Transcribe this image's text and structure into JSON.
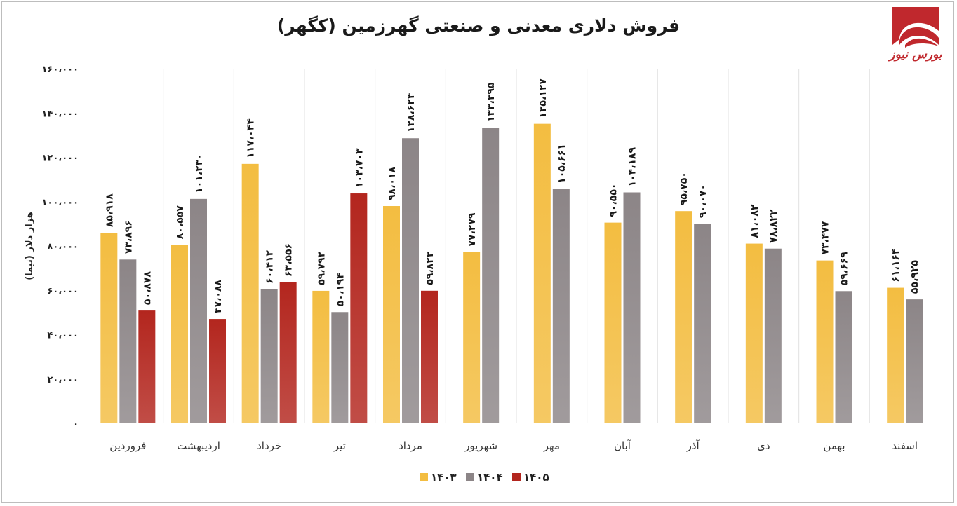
{
  "chart_data": {
    "type": "bar",
    "title": "فروش دلاری معدنی و صنعتی گهرزمین (کگهر)",
    "ylabel": "هزار دلار (نیما)",
    "xlabel": "",
    "ylim": [
      0,
      160000
    ],
    "yticks": [
      0,
      20000,
      40000,
      60000,
      80000,
      100000,
      120000,
      140000,
      160000
    ],
    "ytick_labels": [
      "۰",
      "۲۰،۰۰۰",
      "۴۰،۰۰۰",
      "۶۰،۰۰۰",
      "۸۰،۰۰۰",
      "۱۰۰،۰۰۰",
      "۱۲۰،۰۰۰",
      "۱۴۰،۰۰۰",
      "۱۶۰،۰۰۰"
    ],
    "grid": "vertical separators",
    "legend_position": "bottom-center",
    "categories": [
      "فروردین",
      "اردیبهشت",
      "خرداد",
      "تیر",
      "مرداد",
      "شهریور",
      "مهر",
      "آبان",
      "آذر",
      "دی",
      "بهمن",
      "اسفند"
    ],
    "series": [
      {
        "name": "۱۴۰۳",
        "color": "#f3bd41",
        "values": [
          85918,
          80557,
          117044,
          59792,
          98018,
          77279,
          135127,
          90550,
          95750,
          81082,
          73477,
          61164
        ],
        "labels": [
          "۸۵،۹۱۸",
          "۸۰،۵۵۷",
          "۱۱۷،۰۴۴",
          "۵۹،۷۹۲",
          "۹۸،۰۱۸",
          "۷۷،۲۷۹",
          "۱۳۵،۱۲۷",
          "۹۰،۵۵۰",
          "۹۵،۷۵۰",
          "۸۱،۰۸۲",
          "۷۳،۴۷۷",
          "۶۱،۱۶۴"
        ]
      },
      {
        "name": "۱۴۰۴",
        "color": "#8c8587",
        "values": [
          73896,
          101230,
          60412,
          50194,
          128624,
          133395,
          105661,
          104189,
          90070,
          78822,
          59669,
          55925
        ],
        "labels": [
          "۷۳،۸۹۶",
          "۱۰۱،۲۳۰",
          "۶۰،۴۱۲",
          "۵۰،۱۹۴",
          "۱۲۸،۶۲۴",
          "۱۳۳،۳۹۵",
          "۱۰۵،۶۶۱",
          "۱۰۴،۱۸۹",
          "۹۰،۰۷۰",
          "۷۸،۸۲۲",
          "۵۹،۶۶۹",
          "۵۵،۹۲۵"
        ]
      },
      {
        "name": "۱۴۰۵",
        "color": "#b3261e",
        "values": [
          50878,
          47088,
          63556,
          103703,
          59823,
          null,
          null,
          null,
          null,
          null,
          null,
          null
        ],
        "labels": [
          "۵۰،۸۷۸",
          "۴۷،۰۸۸",
          "۶۳،۵۵۶",
          "۱۰۳،۷۰۳",
          "۵۹،۸۲۳",
          null,
          null,
          null,
          null,
          null,
          null,
          null
        ]
      }
    ]
  },
  "logo": {
    "text": "بورس نیوز",
    "icon": "bourse-news-logo-icon",
    "color": "#c0282d"
  }
}
